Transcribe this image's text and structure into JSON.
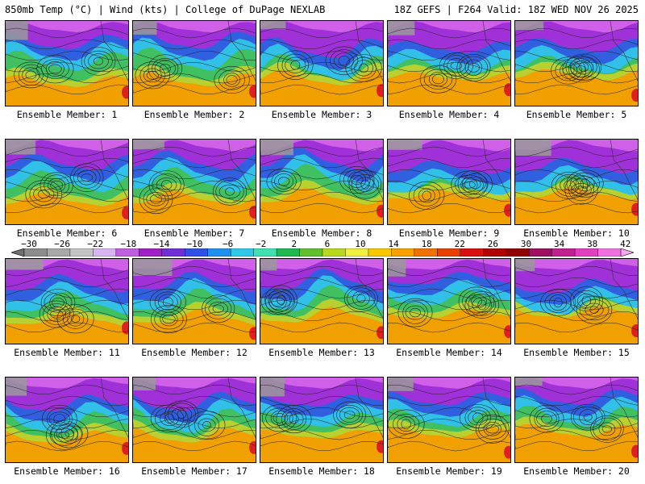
{
  "header": {
    "left": "850mb Temp (°C) | Wind (kts) | College of DuPage NEXLAB",
    "right": "18Z GEFS | F264 Valid: 18Z WED NOV 26 2025"
  },
  "members": [
    "Ensemble Member: 1",
    "Ensemble Member: 2",
    "Ensemble Member: 3",
    "Ensemble Member: 4",
    "Ensemble Member: 5",
    "Ensemble Member: 6",
    "Ensemble Member: 7",
    "Ensemble Member: 8",
    "Ensemble Member: 9",
    "Ensemble Member: 10",
    "Ensemble Member: 11",
    "Ensemble Member: 12",
    "Ensemble Member: 13",
    "Ensemble Member: 14",
    "Ensemble Member: 15",
    "Ensemble Member: 16",
    "Ensemble Member: 17",
    "Ensemble Member: 18",
    "Ensemble Member: 19",
    "Ensemble Member: 20"
  ],
  "colorbar": {
    "labels": [
      "−30",
      "−26",
      "−22",
      "−18",
      "−14",
      "−10",
      "−6",
      "−2",
      "2",
      "6",
      "10",
      "14",
      "18",
      "22",
      "26",
      "30",
      "34",
      "38",
      "42"
    ],
    "colors": [
      "#6e6e6e",
      "#8c8c8c",
      "#a8a8a8",
      "#c4c4c4",
      "#d8b4f0",
      "#c060e0",
      "#a020c8",
      "#7030d8",
      "#3050e8",
      "#2090f0",
      "#30c8e8",
      "#40e0b0",
      "#20b850",
      "#60c030",
      "#b8d820",
      "#f0f040",
      "#f8c800",
      "#f8a000",
      "#f07000",
      "#e84000",
      "#d81010",
      "#b00000",
      "#900000",
      "#a01060",
      "#c02090",
      "#e040c0",
      "#f070e0",
      "#f8a8f0"
    ]
  },
  "palette": {
    "cold": "#a030d8",
    "cool": "#30c0e8",
    "mid": "#40c060",
    "warm": "#f0a000",
    "hot": "#e02020"
  }
}
